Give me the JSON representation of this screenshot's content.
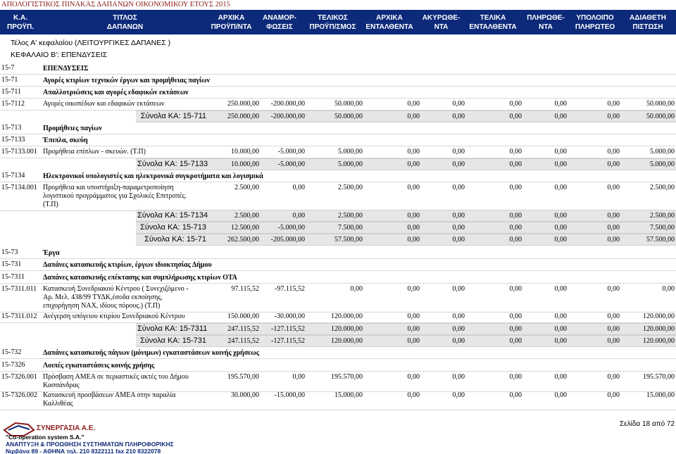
{
  "document_title": "ΑΠΟΛΟΓΙΣΤΙΚΟΣ ΠΙΝΑΚΑΣ ΔΑΠΑΝΩΝ ΟΙΚΟΝΟΜΙΚΟΥ ΕΤΟΥΣ 2015",
  "columns": [
    {
      "l1": "Κ.Α.",
      "l2": "ΠΡΟΫΠ."
    },
    {
      "l1": "ΤΙΤΛΟΣ",
      "l2": "ΔΑΠΑΝΩΝ"
    },
    {
      "l1": "ΑΡΧΙΚΑ",
      "l2": "ΠΡΟΫΠ/ΝΤΑ"
    },
    {
      "l1": "ΑΝΑΜΟΡ-",
      "l2": "ΦΩΣΕΙΣ"
    },
    {
      "l1": "ΤΕΛΙΚΟΣ",
      "l2": "ΠΡΟΫΠ/ΣΜΟΣ"
    },
    {
      "l1": "ΑΡΧΙΚΑ",
      "l2": "ΕΝΤΑΛΘΕΝΤΑ"
    },
    {
      "l1": "ΑΚΥΡΩΘΕ-",
      "l2": "ΝΤΑ"
    },
    {
      "l1": "ΤΕΛΙΚΑ",
      "l2": "ΕΝΤΑΛΘΕΝΤΑ"
    },
    {
      "l1": "ΠΛΗΡΩΘΕ-",
      "l2": "ΝΤΑ"
    },
    {
      "l1": "ΥΠΟΛΟΙΠΟ",
      "l2": "ΠΛΗΡΩΤΕΟ"
    },
    {
      "l1": "ΑΔΙΑΘΕΤΗ",
      "l2": "ΠΙΣΤΩΣΗ"
    }
  ],
  "section_title": "Τέλος Α' κεφαλαίου (ΛΕΙΤΟΥΡΓΙΚΕΣ ΔΑΠΑΝΕΣ )",
  "chapter_title": "ΚΕΦΑΛΑΙΟ Β': ΕΠΕΝΔΥΣΕΙΣ",
  "rows": [
    {
      "type": "group",
      "code": "15-7",
      "desc": "ΕΠΕΝΔΥΣΕΙΣ"
    },
    {
      "type": "group",
      "code": "15-71",
      "desc": "Αγορές κτιρίων τεχνικών έργων και προμήθειας παγίων"
    },
    {
      "type": "group",
      "code": "15-711",
      "desc": "Απαλλοτριώσεις και αγορές εδαφικών εκτάσεων"
    },
    {
      "type": "item",
      "code": "15-7112",
      "desc": [
        "Αγορές οικοπέδων και εδαφικών εκτάσεων"
      ],
      "vals": [
        "250.000,00",
        "-200.000,00",
        "50.000,00",
        "0,00",
        "0,00",
        "0,00",
        "0,00",
        "0,00",
        "50.000,00"
      ]
    },
    {
      "type": "subtotal",
      "label": "Σύνολα ΚΑ: 15-711",
      "vals": [
        "250.000,00",
        "-200.000,00",
        "50.000,00",
        "0,00",
        "0,00",
        "0,00",
        "0,00",
        "0,00",
        "50.000,00"
      ]
    },
    {
      "type": "group",
      "code": "15-713",
      "desc": "Προμήθειες παγίων"
    },
    {
      "type": "group",
      "code": "15-7133",
      "desc": "Έπιπλα, σκεύη"
    },
    {
      "type": "item",
      "code": "15-7133.001",
      "desc": [
        "Προμήθεια επίπλων - σκευών. (Τ.Π)"
      ],
      "vals": [
        "10.000,00",
        "-5.000,00",
        "5.000,00",
        "0,00",
        "0,00",
        "0,00",
        "0,00",
        "0,00",
        "5.000,00"
      ]
    },
    {
      "type": "subtotal",
      "label": "Σύνολα ΚΑ: 15-7133",
      "vals": [
        "10.000,00",
        "-5.000,00",
        "5.000,00",
        "0,00",
        "0,00",
        "0,00",
        "0,00",
        "0,00",
        "5.000,00"
      ]
    },
    {
      "type": "group",
      "code": "15-7134",
      "desc": "Ηλεκτρονικοί υπολογιστές και ηλεκτρονικά συγκροτήματα και λογισμικά"
    },
    {
      "type": "item",
      "code": "15-7134.001",
      "desc": [
        "Προμήθεια και υποστήριξη-παραμετροποίηση",
        "λογιστικού προγράμματος για Σχολικές Επιτροπές.",
        "(Τ.Π)"
      ],
      "vals": [
        "2.500,00",
        "0,00",
        "2.500,00",
        "0,00",
        "0,00",
        "0,00",
        "0,00",
        "0,00",
        "2.500,00"
      ]
    },
    {
      "type": "subtotal",
      "label": "Σύνολα ΚΑ: 15-7134",
      "vals": [
        "2.500,00",
        "0,00",
        "2.500,00",
        "0,00",
        "0,00",
        "0,00",
        "0,00",
        "0,00",
        "2.500,00"
      ]
    },
    {
      "type": "subtotal",
      "label": "Σύνολα ΚΑ: 15-713",
      "vals": [
        "12.500,00",
        "-5.000,00",
        "7.500,00",
        "0,00",
        "0,00",
        "0,00",
        "0,00",
        "0,00",
        "7.500,00"
      ]
    },
    {
      "type": "subtotal",
      "label": "Σύνολα ΚΑ: 15-71",
      "vals": [
        "262.500,00",
        "-205.000,00",
        "57.500,00",
        "0,00",
        "0,00",
        "0,00",
        "0,00",
        "0,00",
        "57.500,00"
      ]
    },
    {
      "type": "group",
      "code": "15-73",
      "desc": "Έργα"
    },
    {
      "type": "group",
      "code": "15-731",
      "desc": "Δαπάνες κατασκευής κτιρίων, έργων ιδιοκτησίας Δήμου"
    },
    {
      "type": "group",
      "code": "15-7311",
      "desc": "Δαπάνες κατασκευής επέκτασης και συμπλήρωσης κτιρίων ΟΤΑ"
    },
    {
      "type": "item",
      "code": "15-7311.011",
      "desc": [
        "Κατασκευή Συνεδριακού Κέντρου ( Συνεχιζόμενο -",
        "Αρ. Μελ. 438/99 ΤΥΔΚ,έσοδα εκποίησης,",
        "επιχορήγηση ΝΑΧ, ιδίους πόρους.) (Τ.Π)"
      ],
      "vals": [
        "97.115,52",
        "-97.115,52",
        "0,00",
        "0,00",
        "0,00",
        "0,00",
        "0,00",
        "0,00",
        "0,00"
      ]
    },
    {
      "type": "item",
      "code": "15-7311.012",
      "desc": [
        "Ανέγερση υπόγειου κτιρίου Συνεδριακού Κέντρου"
      ],
      "vals": [
        "150.000,00",
        "-30.000,00",
        "120.000,00",
        "0,00",
        "0,00",
        "0,00",
        "0,00",
        "0,00",
        "120.000,00"
      ]
    },
    {
      "type": "subtotal",
      "label": "Σύνολα ΚΑ: 15-7311",
      "vals": [
        "247.115,52",
        "-127.115,52",
        "120.000,00",
        "0,00",
        "0,00",
        "0,00",
        "0,00",
        "0,00",
        "120.000,00"
      ]
    },
    {
      "type": "subtotal",
      "label": "Σύνολα ΚΑ: 15-731",
      "vals": [
        "247.115,52",
        "-127.115,52",
        "120.000,00",
        "0,00",
        "0,00",
        "0,00",
        "0,00",
        "0,00",
        "120.000,00"
      ]
    },
    {
      "type": "group",
      "code": "15-732",
      "desc": "Δαπάνες κατασκευής πάγιων (μόνιμων) εγκαταστάσεων κοινής χρήσεως"
    },
    {
      "type": "group",
      "code": "15-7326",
      "desc": "Λοιπές εγκαταστάσεις κοινής χρήσης"
    },
    {
      "type": "item",
      "code": "15-7326.001",
      "desc": [
        "Πρόσβαση ΑΜΕΑ σε περιαστικές ακτές του Δήμου",
        "Κασσάνδρας"
      ],
      "vals": [
        "195.570,00",
        "0,00",
        "195.570,00",
        "0,00",
        "0,00",
        "0,00",
        "0,00",
        "0,00",
        "195.570,00"
      ]
    },
    {
      "type": "item",
      "code": "15-7326.002",
      "desc": [
        "Κατασκευή προσβάσεων ΑΜΕΑ στην παραλία",
        "Καλλιθέας"
      ],
      "vals": [
        "30.000,00",
        "-15.000,00",
        "15.000,00",
        "0,00",
        "0,00",
        "0,00",
        "0,00",
        "0,00",
        "15.000,00"
      ]
    }
  ],
  "page_label": "Σελίδα 18 από 72",
  "footer": {
    "company": "ΣΥΝΕΡΓΑΣΙΑ Α.Ε.",
    "line1": "\"Co-operation system S.A.\"",
    "line2": "ΑΝΑΠΤΥΞΗ & ΠΡΟΩΘΗΣΗ ΣΥΣΤΗΜΑΤΩΝ ΠΛΗΡΟΦΟΡΙΚΗΣ",
    "line3": "Νιρβάνα 89 - ΑΘΗΝΑ τηλ. 210 8322111 fax 210 8322078"
  },
  "colors": {
    "header_bg": "#0d2a7a",
    "title_red": "#8b1a1a",
    "subtotal_bg": "#e6e6e6"
  }
}
